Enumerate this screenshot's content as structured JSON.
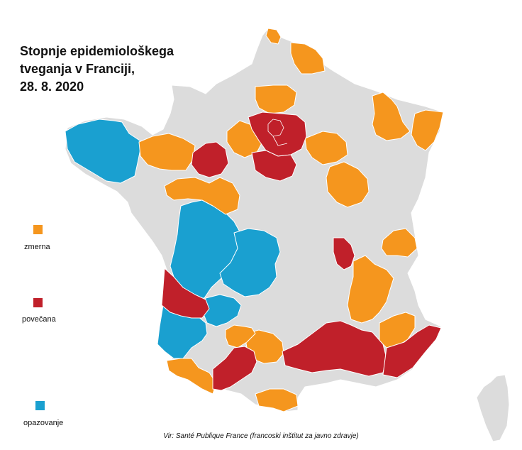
{
  "title": {
    "line1": "Stopnje epidemiološkega",
    "line2": "tveganja v Franciji,",
    "line3": "28. 8. 2020"
  },
  "legend": [
    {
      "label": "zmerna",
      "color": "#F5961E"
    },
    {
      "label": "povečana",
      "color": "#C0202A"
    },
    {
      "label": "opazovanje",
      "color": "#1AA0D0"
    }
  ],
  "colors": {
    "neutral": "#DCDCDC",
    "border": "#FFFFFF"
  },
  "source": "Vir: Santé Publique France (francoski inštitut za javno zdravje)"
}
